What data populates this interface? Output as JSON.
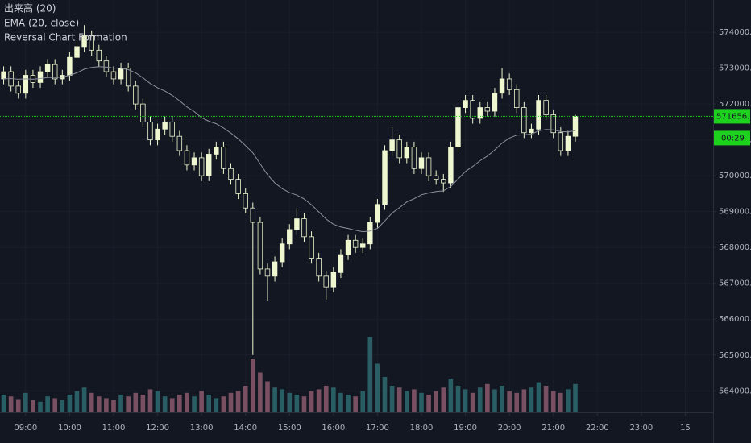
{
  "chart_data": {
    "type": "candlestick",
    "x": [
      510,
      520,
      530,
      540,
      550,
      560,
      570,
      580,
      590,
      600,
      610,
      620,
      630,
      640,
      650,
      660,
      670,
      680,
      690,
      700,
      710,
      720,
      730,
      740,
      750,
      760,
      770,
      780,
      790,
      800,
      810,
      820,
      830,
      840,
      850,
      860,
      870,
      880,
      890,
      900,
      910,
      920,
      930,
      940,
      950,
      960,
      970,
      980,
      990,
      1000,
      1010,
      1020,
      1030,
      1040,
      1050,
      1060,
      1070,
      1080,
      1090,
      1100,
      1110,
      1120,
      1130,
      1140,
      1150,
      1160,
      1170,
      1180,
      1190,
      1200,
      1210,
      1220,
      1230,
      1240,
      1250,
      1260,
      1270,
      1280,
      1290
    ],
    "open": [
      572700,
      572900,
      572500,
      572300,
      572800,
      572600,
      572900,
      573100,
      572700,
      572800,
      573300,
      573600,
      573900,
      573500,
      573200,
      572900,
      572700,
      573000,
      572500,
      572000,
      571500,
      571000,
      571300,
      571500,
      571100,
      570700,
      570300,
      570500,
      570000,
      570600,
      570800,
      570200,
      569900,
      569500,
      569100,
      568700,
      567400,
      567200,
      567600,
      568100,
      568500,
      568800,
      568300,
      567700,
      567200,
      566900,
      567300,
      567800,
      568200,
      568000,
      568100,
      568700,
      569200,
      570700,
      571000,
      570500,
      570800,
      570200,
      570500,
      570000,
      569900,
      569800,
      570800,
      571900,
      572100,
      571600,
      571900,
      571800,
      572300,
      572700,
      572400,
      571900,
      571200,
      571300,
      572100,
      571700,
      571200,
      570700,
      571100
    ],
    "high": [
      573050,
      573050,
      572650,
      572950,
      572950,
      573050,
      573250,
      573250,
      572950,
      573450,
      573750,
      574200,
      574050,
      573650,
      573350,
      573050,
      573150,
      573150,
      572650,
      572150,
      571650,
      571450,
      571650,
      571650,
      571250,
      570850,
      570650,
      570650,
      570750,
      570950,
      570950,
      570350,
      570050,
      569650,
      569250,
      568850,
      567550,
      567750,
      568250,
      568650,
      569100,
      568950,
      568450,
      567850,
      567350,
      567450,
      567950,
      568350,
      568350,
      568250,
      568850,
      569350,
      570850,
      571350,
      571150,
      570950,
      570950,
      570650,
      570650,
      570150,
      570050,
      570950,
      572050,
      572250,
      572250,
      572050,
      572050,
      572450,
      573000,
      572850,
      572550,
      572050,
      571450,
      572250,
      572250,
      571850,
      571350,
      571250,
      571700
    ],
    "low": [
      572550,
      572350,
      572150,
      572150,
      572450,
      572450,
      572750,
      572550,
      572550,
      572650,
      573150,
      573450,
      573350,
      573050,
      572750,
      572550,
      572550,
      572350,
      571850,
      571350,
      570850,
      570850,
      571150,
      570950,
      570550,
      570150,
      570150,
      569850,
      569850,
      570450,
      570050,
      569750,
      569350,
      568950,
      565000,
      567250,
      566500,
      567050,
      567450,
      567950,
      568350,
      568150,
      567550,
      567050,
      566550,
      566750,
      567150,
      567650,
      567850,
      567850,
      567950,
      568550,
      569050,
      570550,
      570350,
      570350,
      570050,
      570050,
      569850,
      569750,
      569550,
      569650,
      570650,
      571750,
      571450,
      571450,
      571650,
      571650,
      572150,
      572250,
      571750,
      571050,
      571050,
      571150,
      571550,
      571050,
      570550,
      570550,
      570950
    ],
    "close": [
      572900,
      572500,
      572300,
      572800,
      572600,
      572900,
      573100,
      572700,
      572800,
      573300,
      573600,
      573900,
      573500,
      573200,
      572900,
      572700,
      573000,
      572500,
      572000,
      571500,
      571000,
      571300,
      571500,
      571100,
      570700,
      570300,
      570500,
      570000,
      570600,
      570800,
      570200,
      569900,
      569500,
      569100,
      568700,
      567400,
      567200,
      567600,
      568100,
      568500,
      568800,
      568300,
      567700,
      567200,
      566900,
      567300,
      567800,
      568200,
      568000,
      568100,
      568700,
      569200,
      570700,
      571000,
      570500,
      570800,
      570200,
      570500,
      570000,
      569900,
      569800,
      570800,
      571900,
      572100,
      571600,
      571900,
      571800,
      572300,
      572700,
      572400,
      571900,
      571200,
      571300,
      572100,
      571700,
      571200,
      570700,
      571100,
      571656
    ],
    "up_color": "#eef7cf",
    "down_color": "#131722",
    "wick_color": "#eef7cf",
    "ema": {
      "name": "EMA (20, close)",
      "color": "#8d919c",
      "values": [
        572700,
        572710,
        572690,
        572700,
        572690,
        572710,
        572740,
        572740,
        572750,
        572800,
        572870,
        572970,
        573020,
        573040,
        573030,
        573000,
        573000,
        572960,
        572870,
        572730,
        572570,
        572450,
        572360,
        572240,
        572090,
        571920,
        571790,
        571620,
        571520,
        571450,
        571330,
        571190,
        571030,
        570840,
        570640,
        570330,
        570030,
        569800,
        569640,
        569530,
        569460,
        569350,
        569190,
        568990,
        568790,
        568650,
        568570,
        568530,
        568480,
        568440,
        568460,
        568530,
        568740,
        568960,
        569110,
        569270,
        569360,
        569470,
        569520,
        569560,
        569580,
        569700,
        569910,
        570120,
        570260,
        570420,
        570550,
        570720,
        570910,
        571050,
        571130,
        571140,
        571160,
        571250,
        571290,
        571280,
        571230,
        571220,
        571260
      ]
    },
    "volume": {
      "name": "出来高 (20)",
      "up_color": "#2e6b70",
      "down_color": "#8b5a6c",
      "vlim": [
        0,
        100
      ],
      "values": [
        20,
        18,
        15,
        22,
        14,
        12,
        18,
        16,
        14,
        20,
        24,
        28,
        22,
        18,
        16,
        14,
        20,
        18,
        22,
        20,
        26,
        24,
        18,
        16,
        20,
        22,
        18,
        24,
        20,
        16,
        18,
        22,
        24,
        30,
        60,
        45,
        35,
        28,
        26,
        22,
        20,
        18,
        24,
        26,
        30,
        28,
        22,
        20,
        18,
        24,
        85,
        55,
        40,
        30,
        28,
        24,
        26,
        22,
        20,
        24,
        28,
        38,
        30,
        26,
        22,
        28,
        32,
        26,
        30,
        24,
        22,
        26,
        28,
        34,
        30,
        24,
        22,
        26,
        32
      ]
    },
    "study_name": "Reversal Chart Formation",
    "xlim": [
      505,
      1478
    ],
    "xticks": [
      {
        "value": 540,
        "label": "09:00"
      },
      {
        "value": 600,
        "label": "10:00"
      },
      {
        "value": 660,
        "label": "11:00"
      },
      {
        "value": 720,
        "label": "12:00"
      },
      {
        "value": 780,
        "label": "13:00"
      },
      {
        "value": 840,
        "label": "14:00"
      },
      {
        "value": 900,
        "label": "15:00"
      },
      {
        "value": 960,
        "label": "16:00"
      },
      {
        "value": 1020,
        "label": "17:00"
      },
      {
        "value": 1080,
        "label": "18:00"
      },
      {
        "value": 1140,
        "label": "19:00"
      },
      {
        "value": 1200,
        "label": "20:00"
      },
      {
        "value": 1260,
        "label": "21:00"
      },
      {
        "value": 1320,
        "label": "22:00"
      },
      {
        "value": 1380,
        "label": "23:00"
      },
      {
        "value": 1440,
        "label": "15"
      }
    ],
    "ylim": [
      563400,
      574900
    ],
    "yticks": [
      {
        "value": 564000,
        "label": "564000.00"
      },
      {
        "value": 565000,
        "label": "565000.00"
      },
      {
        "value": 566000,
        "label": "566000.00"
      },
      {
        "value": 567000,
        "label": "567000.00"
      },
      {
        "value": 568000,
        "label": "568000.00"
      },
      {
        "value": 569000,
        "label": "569000.00"
      },
      {
        "value": 570000,
        "label": "570000.00"
      },
      {
        "value": 571000,
        "label": "571000.00"
      },
      {
        "value": 572000,
        "label": "572000.00"
      },
      {
        "value": 573000,
        "label": "573000.00"
      },
      {
        "value": 574000,
        "label": "574000.00"
      }
    ],
    "grid": true,
    "last": {
      "value": 571656,
      "label": "571656.00",
      "color": "#1fd11f"
    },
    "countdown": "00:29"
  }
}
